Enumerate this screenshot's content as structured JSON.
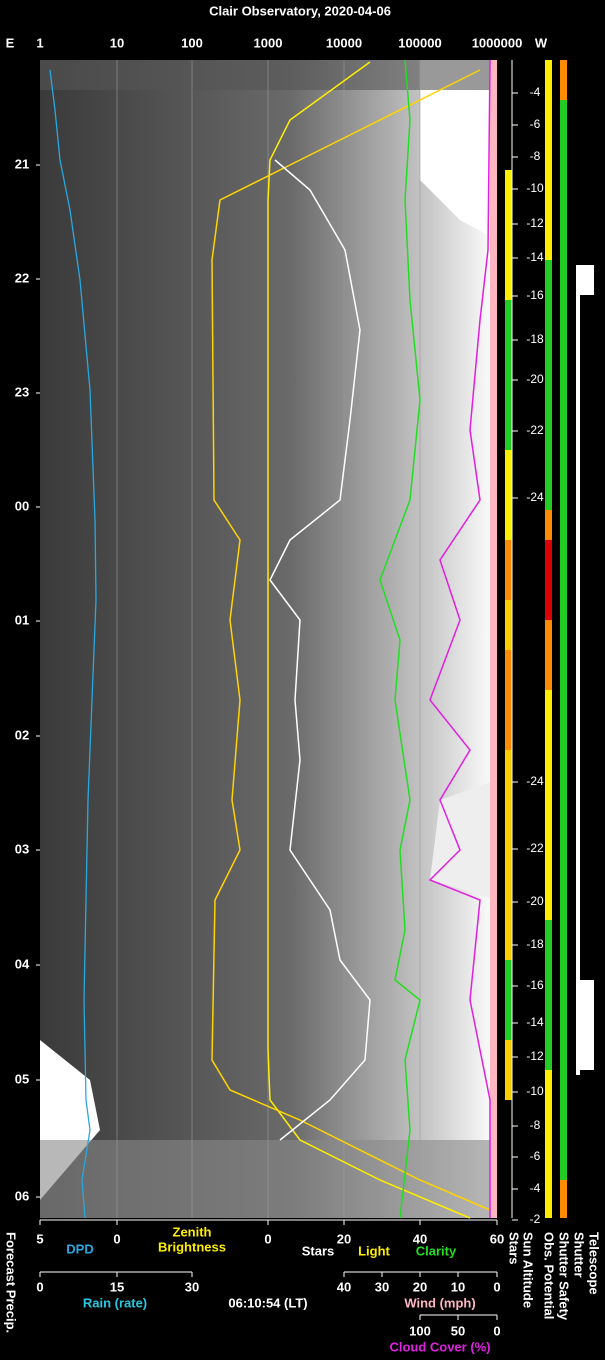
{
  "title": "Clair Observatory, 2020-04-06",
  "top_axis": {
    "left": "E",
    "right": "W",
    "ticks": [
      "1",
      "10",
      "100",
      "1000",
      "10000",
      "100000",
      "1000000"
    ]
  },
  "time_labels": [
    "21",
    "22",
    "23",
    "00",
    "01",
    "02",
    "03",
    "04",
    "05",
    "06"
  ],
  "sun_altitude_labels": [
    "-4",
    "-6",
    "-8",
    "-10",
    "-12",
    "-14",
    "-16",
    "-18",
    "-20",
    "-22",
    "-24",
    "-24",
    "-22",
    "-20",
    "-18",
    "-16",
    "-14",
    "-12",
    "-10",
    "-8",
    "-6",
    "-4",
    "-2"
  ],
  "bottom": {
    "axis1_ticks": [
      "5",
      "0",
      "0",
      "20",
      "40",
      "60"
    ],
    "dpd": "DPD",
    "zenith_brightness": [
      "Zenith",
      "Brightness"
    ],
    "stars": "Stars",
    "light": "Light",
    "clarity": "Clarity",
    "axis2_rain_ticks": [
      "0",
      "15",
      "30"
    ],
    "axis2_wind_ticks": [
      "40",
      "30",
      "20",
      "10",
      "0"
    ],
    "rain": "Rain (rate)",
    "time": "06:10:54 (LT)",
    "wind": "Wind (mph)",
    "axis3_ticks": [
      "100",
      "50",
      "0"
    ],
    "cloud": "Cloud Cover (%)"
  },
  "column_labels": {
    "forecast_precip": "Forecast Precip.",
    "stars": "Stars",
    "sun_altitude": "Sun Altitude",
    "obs_potential": "Obs. Potential",
    "shutter_safety": "Shutter Safety",
    "shutter": "Shutter",
    "telescope": "Telescope"
  }
}
